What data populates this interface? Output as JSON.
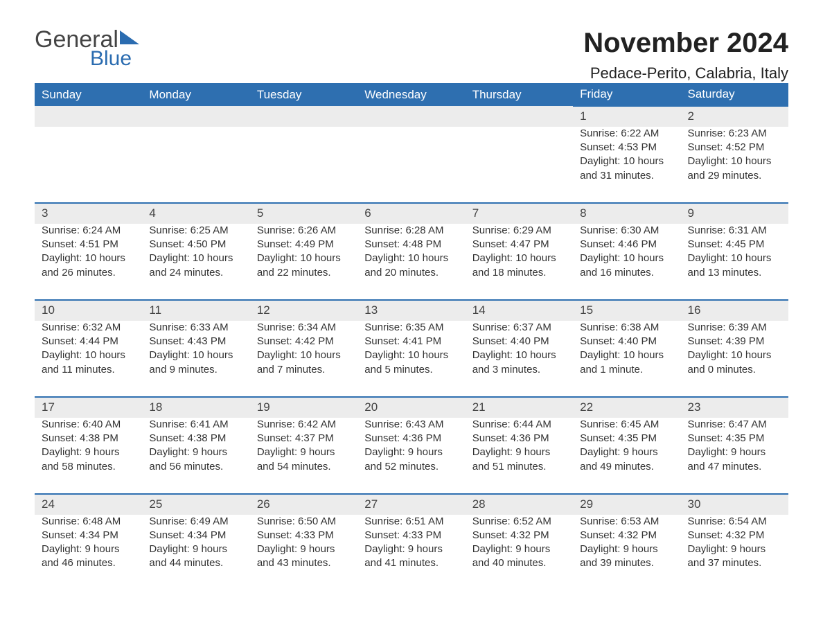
{
  "brand": {
    "part1": "General",
    "part2": "Blue"
  },
  "title": "November 2024",
  "location": "Pedace-Perito, Calabria, Italy",
  "colors": {
    "header_bg": "#2e6fb0",
    "header_text": "#ffffff",
    "row_border": "#2e6fb0",
    "daynum_bg": "#ececec",
    "text": "#333333",
    "brand_blue": "#2b6cb0",
    "background": "#ffffff"
  },
  "layout": {
    "columns": 7,
    "weeks": 5,
    "font_family": "Arial",
    "title_fontsize": 40,
    "location_fontsize": 22,
    "header_fontsize": 17,
    "daynum_fontsize": 17,
    "cell_fontsize": 15
  },
  "day_headers": [
    "Sunday",
    "Monday",
    "Tuesday",
    "Wednesday",
    "Thursday",
    "Friday",
    "Saturday"
  ],
  "weeks": [
    [
      null,
      null,
      null,
      null,
      null,
      {
        "n": "1",
        "sr": "Sunrise: 6:22 AM",
        "ss": "Sunset: 4:53 PM",
        "d1": "Daylight: 10 hours",
        "d2": "and 31 minutes."
      },
      {
        "n": "2",
        "sr": "Sunrise: 6:23 AM",
        "ss": "Sunset: 4:52 PM",
        "d1": "Daylight: 10 hours",
        "d2": "and 29 minutes."
      }
    ],
    [
      {
        "n": "3",
        "sr": "Sunrise: 6:24 AM",
        "ss": "Sunset: 4:51 PM",
        "d1": "Daylight: 10 hours",
        "d2": "and 26 minutes."
      },
      {
        "n": "4",
        "sr": "Sunrise: 6:25 AM",
        "ss": "Sunset: 4:50 PM",
        "d1": "Daylight: 10 hours",
        "d2": "and 24 minutes."
      },
      {
        "n": "5",
        "sr": "Sunrise: 6:26 AM",
        "ss": "Sunset: 4:49 PM",
        "d1": "Daylight: 10 hours",
        "d2": "and 22 minutes."
      },
      {
        "n": "6",
        "sr": "Sunrise: 6:28 AM",
        "ss": "Sunset: 4:48 PM",
        "d1": "Daylight: 10 hours",
        "d2": "and 20 minutes."
      },
      {
        "n": "7",
        "sr": "Sunrise: 6:29 AM",
        "ss": "Sunset: 4:47 PM",
        "d1": "Daylight: 10 hours",
        "d2": "and 18 minutes."
      },
      {
        "n": "8",
        "sr": "Sunrise: 6:30 AM",
        "ss": "Sunset: 4:46 PM",
        "d1": "Daylight: 10 hours",
        "d2": "and 16 minutes."
      },
      {
        "n": "9",
        "sr": "Sunrise: 6:31 AM",
        "ss": "Sunset: 4:45 PM",
        "d1": "Daylight: 10 hours",
        "d2": "and 13 minutes."
      }
    ],
    [
      {
        "n": "10",
        "sr": "Sunrise: 6:32 AM",
        "ss": "Sunset: 4:44 PM",
        "d1": "Daylight: 10 hours",
        "d2": "and 11 minutes."
      },
      {
        "n": "11",
        "sr": "Sunrise: 6:33 AM",
        "ss": "Sunset: 4:43 PM",
        "d1": "Daylight: 10 hours",
        "d2": "and 9 minutes."
      },
      {
        "n": "12",
        "sr": "Sunrise: 6:34 AM",
        "ss": "Sunset: 4:42 PM",
        "d1": "Daylight: 10 hours",
        "d2": "and 7 minutes."
      },
      {
        "n": "13",
        "sr": "Sunrise: 6:35 AM",
        "ss": "Sunset: 4:41 PM",
        "d1": "Daylight: 10 hours",
        "d2": "and 5 minutes."
      },
      {
        "n": "14",
        "sr": "Sunrise: 6:37 AM",
        "ss": "Sunset: 4:40 PM",
        "d1": "Daylight: 10 hours",
        "d2": "and 3 minutes."
      },
      {
        "n": "15",
        "sr": "Sunrise: 6:38 AM",
        "ss": "Sunset: 4:40 PM",
        "d1": "Daylight: 10 hours",
        "d2": "and 1 minute."
      },
      {
        "n": "16",
        "sr": "Sunrise: 6:39 AM",
        "ss": "Sunset: 4:39 PM",
        "d1": "Daylight: 10 hours",
        "d2": "and 0 minutes."
      }
    ],
    [
      {
        "n": "17",
        "sr": "Sunrise: 6:40 AM",
        "ss": "Sunset: 4:38 PM",
        "d1": "Daylight: 9 hours",
        "d2": "and 58 minutes."
      },
      {
        "n": "18",
        "sr": "Sunrise: 6:41 AM",
        "ss": "Sunset: 4:38 PM",
        "d1": "Daylight: 9 hours",
        "d2": "and 56 minutes."
      },
      {
        "n": "19",
        "sr": "Sunrise: 6:42 AM",
        "ss": "Sunset: 4:37 PM",
        "d1": "Daylight: 9 hours",
        "d2": "and 54 minutes."
      },
      {
        "n": "20",
        "sr": "Sunrise: 6:43 AM",
        "ss": "Sunset: 4:36 PM",
        "d1": "Daylight: 9 hours",
        "d2": "and 52 minutes."
      },
      {
        "n": "21",
        "sr": "Sunrise: 6:44 AM",
        "ss": "Sunset: 4:36 PM",
        "d1": "Daylight: 9 hours",
        "d2": "and 51 minutes."
      },
      {
        "n": "22",
        "sr": "Sunrise: 6:45 AM",
        "ss": "Sunset: 4:35 PM",
        "d1": "Daylight: 9 hours",
        "d2": "and 49 minutes."
      },
      {
        "n": "23",
        "sr": "Sunrise: 6:47 AM",
        "ss": "Sunset: 4:35 PM",
        "d1": "Daylight: 9 hours",
        "d2": "and 47 minutes."
      }
    ],
    [
      {
        "n": "24",
        "sr": "Sunrise: 6:48 AM",
        "ss": "Sunset: 4:34 PM",
        "d1": "Daylight: 9 hours",
        "d2": "and 46 minutes."
      },
      {
        "n": "25",
        "sr": "Sunrise: 6:49 AM",
        "ss": "Sunset: 4:34 PM",
        "d1": "Daylight: 9 hours",
        "d2": "and 44 minutes."
      },
      {
        "n": "26",
        "sr": "Sunrise: 6:50 AM",
        "ss": "Sunset: 4:33 PM",
        "d1": "Daylight: 9 hours",
        "d2": "and 43 minutes."
      },
      {
        "n": "27",
        "sr": "Sunrise: 6:51 AM",
        "ss": "Sunset: 4:33 PM",
        "d1": "Daylight: 9 hours",
        "d2": "and 41 minutes."
      },
      {
        "n": "28",
        "sr": "Sunrise: 6:52 AM",
        "ss": "Sunset: 4:32 PM",
        "d1": "Daylight: 9 hours",
        "d2": "and 40 minutes."
      },
      {
        "n": "29",
        "sr": "Sunrise: 6:53 AM",
        "ss": "Sunset: 4:32 PM",
        "d1": "Daylight: 9 hours",
        "d2": "and 39 minutes."
      },
      {
        "n": "30",
        "sr": "Sunrise: 6:54 AM",
        "ss": "Sunset: 4:32 PM",
        "d1": "Daylight: 9 hours",
        "d2": "and 37 minutes."
      }
    ]
  ]
}
